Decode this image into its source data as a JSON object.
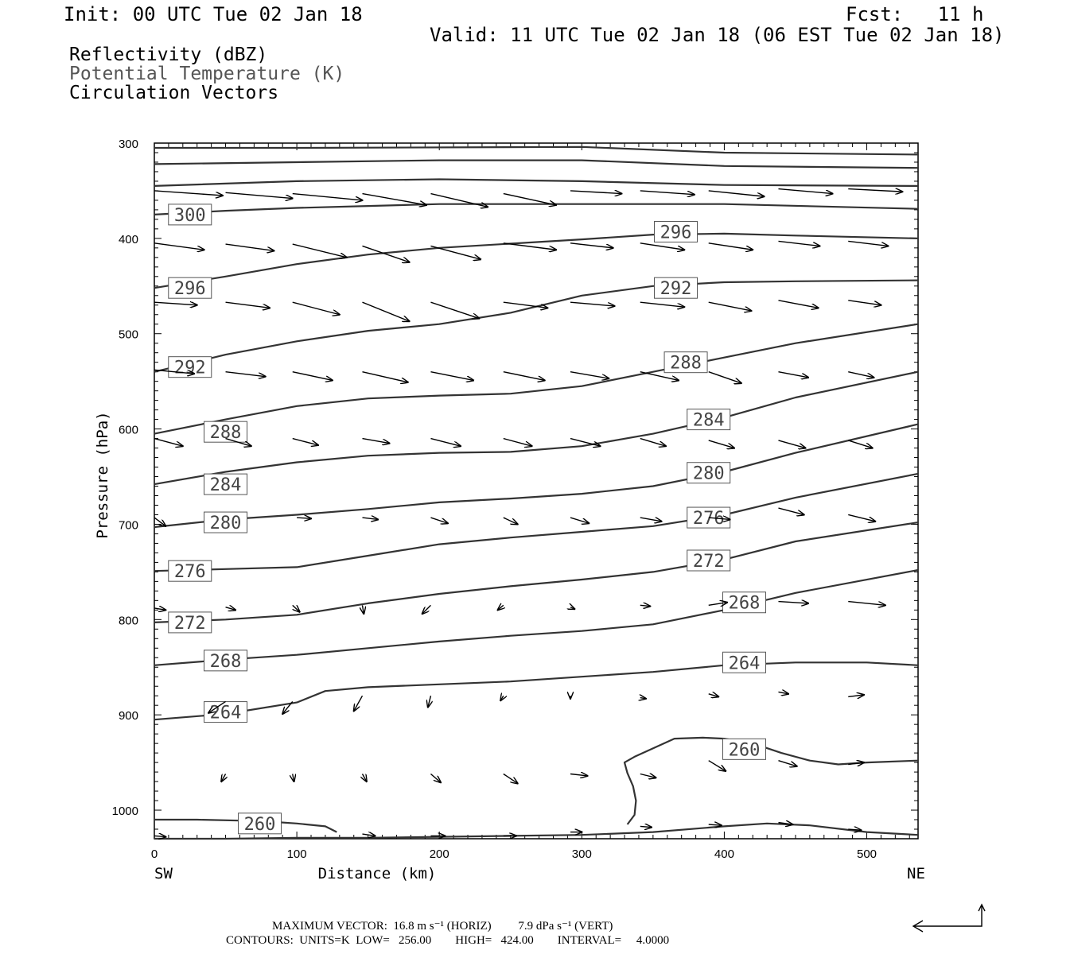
{
  "header": {
    "init": "Init: 00 UTC Tue 02 Jan 18",
    "fcst": "Fcst:   11 h",
    "valid": "Valid: 11 UTC Tue 02 Jan 18 (06 EST Tue 02 Jan 18)",
    "fields": [
      "Reflectivity (dBZ)",
      "Potential Temperature (K)",
      "Circulation Vectors"
    ]
  },
  "footer": {
    "max_vector": "MAXIMUM VECTOR:  16.8 m s⁻¹ (HORIZ)         7.9 dPa s⁻¹ (VERT)",
    "contours": "CONTOURS:  UNITS=K  LOW=   256.00        HIGH=   424.00        INTERVAL=     4.0000"
  },
  "chart_data": {
    "type": "line",
    "xlabel": "Distance (km)",
    "ylabel": "Pressure (hPa)",
    "xlim": [
      0,
      536
    ],
    "ylim": [
      1030,
      300
    ],
    "xticks": [
      0,
      100,
      200,
      300,
      400,
      500
    ],
    "yticks": [
      300,
      400,
      500,
      600,
      700,
      800,
      900,
      1000
    ],
    "x_end_labels": [
      "SW",
      "NE"
    ],
    "contour_color": "#333333",
    "vector_color": "#000000",
    "series": [
      {
        "name": "unlabeled_top1",
        "label_pos": null,
        "x": [
          0,
          100,
          300,
          400,
          536
        ],
        "y": [
          305,
          305,
          304,
          310,
          312
        ]
      },
      {
        "name": "unlabeled_top2",
        "label_pos": null,
        "x": [
          0,
          100,
          200,
          300,
          400,
          536
        ],
        "y": [
          322,
          320,
          318,
          318,
          324,
          326
        ]
      },
      {
        "name": "unlabeled_top3",
        "label_pos": null,
        "x": [
          0,
          100,
          200,
          300,
          400,
          536
        ],
        "y": [
          345,
          340,
          338,
          340,
          344,
          345
        ]
      },
      {
        "name": "300",
        "label_pos": [
          25,
          375
        ],
        "x": [
          0,
          50,
          100,
          150,
          200,
          300,
          400,
          536
        ],
        "y": [
          375,
          371,
          368,
          366,
          364,
          364,
          364,
          369
        ]
      },
      {
        "name": "296",
        "label_pos": [
          25,
          452
        ],
        "label_pos2": [
          366,
          393
        ],
        "x": [
          0,
          50,
          100,
          150,
          200,
          300,
          350,
          400,
          450,
          536
        ],
        "y": [
          452,
          440,
          427,
          417,
          410,
          401,
          396,
          395,
          397,
          400
        ]
      },
      {
        "name": "292",
        "label_pos": [
          25,
          535
        ],
        "label_pos2": [
          366,
          452
        ],
        "x": [
          0,
          50,
          100,
          150,
          200,
          250,
          300,
          350,
          400,
          450,
          536
        ],
        "y": [
          540,
          522,
          508,
          497,
          490,
          478,
          460,
          450,
          446,
          445,
          444
        ]
      },
      {
        "name": "288",
        "label_pos": [
          50,
          603
        ],
        "label_pos2": [
          373,
          530
        ],
        "x": [
          0,
          50,
          100,
          150,
          200,
          250,
          300,
          350,
          400,
          450,
          536
        ],
        "y": [
          605,
          590,
          576,
          568,
          565,
          563,
          555,
          540,
          525,
          510,
          490
        ]
      },
      {
        "name": "284",
        "label_pos": [
          50,
          658
        ],
        "label_pos2": [
          389,
          590
        ],
        "x": [
          0,
          50,
          100,
          150,
          200,
          250,
          300,
          350,
          400,
          450,
          536
        ],
        "y": [
          658,
          645,
          635,
          628,
          625,
          624,
          618,
          605,
          588,
          567,
          540
        ]
      },
      {
        "name": "280",
        "label_pos": [
          50,
          698
        ],
        "label_pos2": [
          389,
          646
        ],
        "x": [
          0,
          50,
          100,
          150,
          200,
          250,
          300,
          350,
          400,
          450,
          536
        ],
        "y": [
          703,
          695,
          690,
          684,
          677,
          673,
          668,
          660,
          645,
          625,
          595
        ]
      },
      {
        "name": "276",
        "label_pos": [
          25,
          749
        ],
        "label_pos2": [
          389,
          693
        ],
        "x": [
          0,
          50,
          100,
          150,
          200,
          250,
          300,
          350,
          400,
          450,
          536
        ],
        "y": [
          749,
          747,
          745,
          733,
          721,
          714,
          708,
          702,
          690,
          672,
          647
        ]
      },
      {
        "name": "272",
        "label_pos": [
          25,
          803
        ],
        "label_pos2": [
          389,
          738
        ],
        "x": [
          0,
          50,
          100,
          150,
          200,
          250,
          300,
          350,
          400,
          450,
          536
        ],
        "y": [
          803,
          800,
          795,
          783,
          773,
          765,
          758,
          750,
          737,
          718,
          698
        ]
      },
      {
        "name": "268",
        "label_pos": [
          50,
          843
        ],
        "label_pos2": [
          414,
          782
        ],
        "x": [
          0,
          50,
          100,
          150,
          200,
          250,
          300,
          350,
          400,
          450,
          536
        ],
        "y": [
          848,
          842,
          837,
          830,
          823,
          817,
          812,
          805,
          790,
          772,
          748
        ]
      },
      {
        "name": "264",
        "label_pos": [
          50,
          897
        ],
        "label_pos2": [
          414,
          845
        ],
        "x": [
          0,
          50,
          100,
          120,
          150,
          200,
          250,
          300,
          350,
          400,
          450,
          500,
          536
        ],
        "y": [
          905,
          899,
          887,
          875,
          871,
          868,
          865,
          860,
          855,
          848,
          845,
          845,
          848
        ]
      },
      {
        "name": "260",
        "label_pos": [
          74,
          1014
        ],
        "label_pos2": [
          414,
          936
        ],
        "x": [
          0,
          30,
          60,
          80,
          100,
          120,
          128
        ],
        "y": [
          1010,
          1010,
          1011,
          1012,
          1014,
          1017,
          1023
        ]
      },
      {
        "name": "260_b",
        "label_pos": null,
        "x": [
          332,
          337,
          338,
          336,
          332,
          330,
          337,
          365,
          385,
          400,
          420,
          440,
          460,
          480,
          500,
          536
        ],
        "y": [
          1015,
          1005,
          990,
          975,
          961,
          950,
          944,
          925,
          924,
          925,
          930,
          940,
          948,
          952,
          950,
          948
        ]
      },
      {
        "name": "256",
        "label_pos": null,
        "x": [
          0,
          50,
          100,
          150,
          200,
          250,
          300,
          350,
          400,
          430,
          460,
          500,
          536
        ],
        "y": [
          1030,
          1030,
          1029,
          1029,
          1028,
          1027,
          1026,
          1023,
          1017,
          1014,
          1016,
          1023,
          1026
        ]
      }
    ],
    "vectors": [
      {
        "row": "350",
        "y": 350,
        "items": [
          [
            0,
            350,
            48,
            355
          ],
          [
            50,
            352,
            97,
            358
          ],
          [
            97,
            353,
            146,
            360
          ],
          [
            146,
            353,
            191,
            365
          ],
          [
            194,
            353,
            234,
            367
          ],
          [
            245,
            353,
            282,
            365
          ],
          [
            292,
            350,
            328,
            353
          ],
          [
            341,
            350,
            379,
            354
          ],
          [
            389,
            350,
            428,
            356
          ],
          [
            438,
            348,
            476,
            353
          ],
          [
            487,
            348,
            525,
            351
          ]
        ]
      },
      {
        "row": "408",
        "y": 408,
        "items": [
          [
            0,
            405,
            35,
            412
          ],
          [
            50,
            406,
            84,
            413
          ],
          [
            97,
            406,
            135,
            420
          ],
          [
            146,
            408,
            179,
            425
          ],
          [
            194,
            408,
            229,
            422
          ],
          [
            245,
            405,
            282,
            412
          ],
          [
            292,
            405,
            322,
            410
          ],
          [
            341,
            405,
            372,
            412
          ],
          [
            389,
            405,
            420,
            412
          ],
          [
            438,
            403,
            467,
            408
          ],
          [
            487,
            403,
            515,
            408
          ]
        ]
      },
      {
        "row": "465",
        "y": 465,
        "items": [
          [
            0,
            467,
            30,
            470
          ],
          [
            50,
            467,
            81,
            473
          ],
          [
            97,
            467,
            130,
            480
          ],
          [
            146,
            467,
            179,
            487
          ],
          [
            194,
            467,
            228,
            484
          ],
          [
            245,
            467,
            276,
            473
          ],
          [
            292,
            467,
            323,
            471
          ],
          [
            341,
            467,
            372,
            472
          ],
          [
            389,
            467,
            419,
            476
          ],
          [
            438,
            465,
            466,
            473
          ],
          [
            487,
            465,
            510,
            470
          ]
        ]
      },
      {
        "row": "540",
        "y": 540,
        "items": [
          [
            0,
            538,
            28,
            542
          ],
          [
            50,
            540,
            78,
            545
          ],
          [
            97,
            540,
            125,
            549
          ],
          [
            146,
            540,
            178,
            551
          ],
          [
            194,
            540,
            224,
            549
          ],
          [
            245,
            540,
            274,
            549
          ],
          [
            292,
            540,
            319,
            547
          ],
          [
            341,
            540,
            368,
            549
          ],
          [
            389,
            540,
            412,
            552
          ],
          [
            438,
            540,
            459,
            546
          ],
          [
            487,
            540,
            505,
            546
          ]
        ]
      },
      {
        "row": "610",
        "y": 610,
        "items": [
          [
            0,
            610,
            20,
            618
          ],
          [
            50,
            610,
            68,
            618
          ],
          [
            97,
            610,
            115,
            617
          ],
          [
            146,
            610,
            165,
            615
          ],
          [
            194,
            610,
            215,
            618
          ],
          [
            245,
            610,
            265,
            618
          ],
          [
            292,
            610,
            313,
            618
          ],
          [
            341,
            610,
            359,
            618
          ],
          [
            389,
            612,
            407,
            620
          ],
          [
            438,
            612,
            457,
            620
          ],
          [
            487,
            612,
            504,
            620
          ]
        ]
      },
      {
        "row": "697",
        "y": 697,
        "items": [
          [
            0,
            693,
            8,
            702
          ],
          [
            100,
            693,
            110,
            694
          ],
          [
            146,
            693,
            157,
            695
          ],
          [
            194,
            693,
            206,
            699
          ],
          [
            245,
            693,
            255,
            700
          ],
          [
            292,
            693,
            305,
            699
          ],
          [
            341,
            693,
            356,
            697
          ],
          [
            389,
            693,
            404,
            695
          ],
          [
            438,
            683,
            456,
            690
          ],
          [
            487,
            690,
            506,
            697
          ]
        ]
      },
      {
        "row": "785",
        "y": 785,
        "items": [
          [
            0,
            788,
            8,
            790
          ],
          [
            50,
            787,
            57,
            790
          ],
          [
            97,
            785,
            102,
            792
          ],
          [
            146,
            785,
            147,
            794
          ],
          [
            194,
            785,
            188,
            794
          ],
          [
            245,
            785,
            241,
            790
          ],
          [
            292,
            787,
            295,
            789
          ],
          [
            341,
            785,
            348,
            786
          ],
          [
            389,
            785,
            402,
            782
          ],
          [
            438,
            781,
            459,
            783
          ],
          [
            487,
            781,
            513,
            785
          ]
        ]
      },
      {
        "row": "880",
        "y": 880,
        "items": [
          [
            50,
            886,
            38,
            898
          ],
          [
            97,
            886,
            90,
            899
          ],
          [
            146,
            880,
            140,
            896
          ],
          [
            194,
            880,
            192,
            892
          ],
          [
            245,
            880,
            243,
            885
          ],
          [
            292,
            880,
            292,
            883
          ],
          [
            341,
            882,
            345,
            883
          ],
          [
            389,
            878,
            396,
            881
          ],
          [
            438,
            876,
            445,
            878
          ],
          [
            487,
            881,
            498,
            879
          ]
        ]
      },
      {
        "row": "960",
        "y": 960,
        "items": [
          [
            50,
            962,
            47,
            970
          ],
          [
            97,
            962,
            98,
            970
          ],
          [
            146,
            962,
            149,
            970
          ],
          [
            194,
            962,
            201,
            971
          ],
          [
            245,
            962,
            255,
            972
          ],
          [
            292,
            962,
            304,
            964
          ],
          [
            341,
            962,
            352,
            966
          ],
          [
            389,
            948,
            401,
            959
          ],
          [
            438,
            948,
            451,
            954
          ],
          [
            487,
            952,
            498,
            950
          ]
        ]
      },
      {
        "row": "1022",
        "y": 1022,
        "items": [
          [
            0,
            1027,
            8,
            1028
          ],
          [
            146,
            1025,
            155,
            1027
          ],
          [
            194,
            1027,
            204,
            1027
          ],
          [
            245,
            1027,
            254,
            1027
          ],
          [
            292,
            1023,
            300,
            1023
          ],
          [
            341,
            1017,
            349,
            1018
          ],
          [
            389,
            1015,
            398,
            1016
          ],
          [
            438,
            1013,
            448,
            1015
          ],
          [
            487,
            1020,
            496,
            1021
          ]
        ]
      }
    ]
  }
}
